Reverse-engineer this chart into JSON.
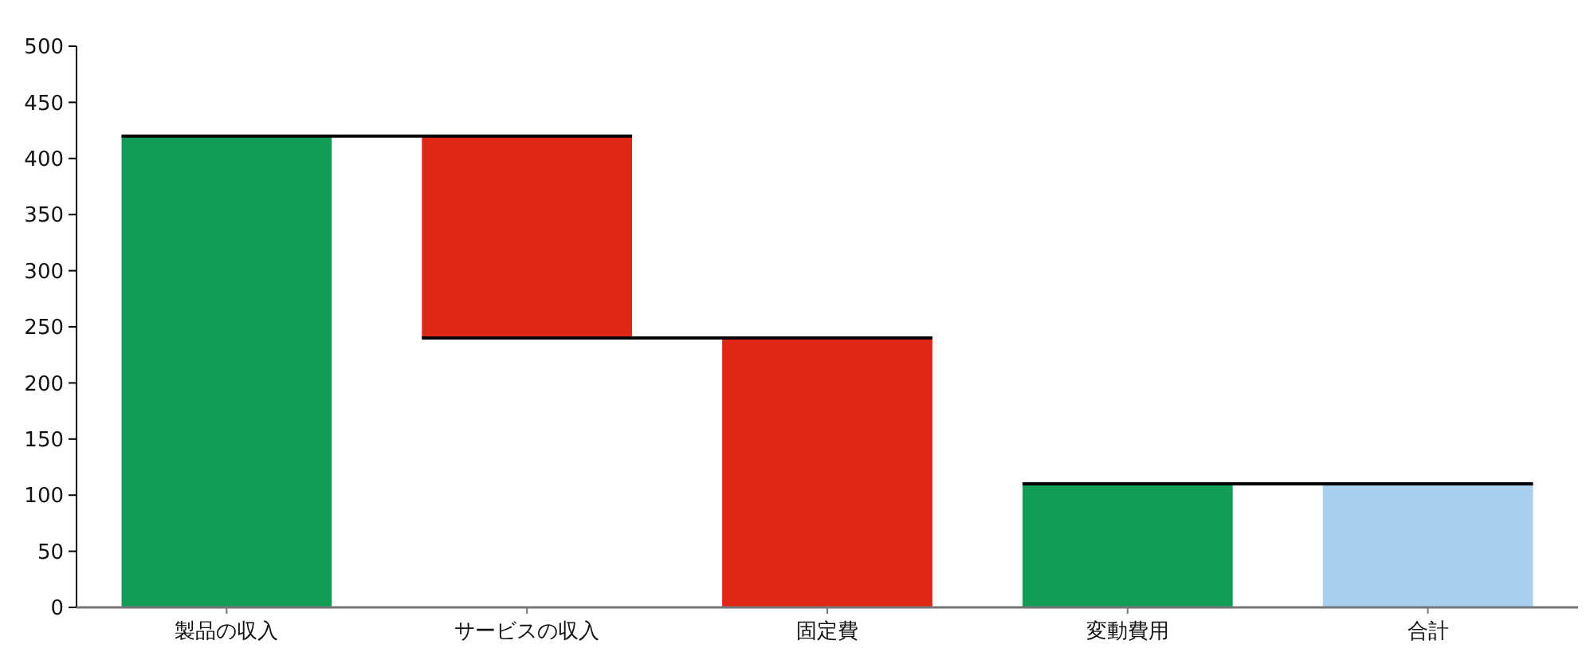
{
  "chart_data": {
    "type": "bar",
    "categories": [
      "製品の収入",
      "サービスの収入",
      "固定費",
      "変動費用",
      "合計"
    ],
    "values": [
      420,
      180,
      240,
      110,
      110
    ],
    "base": [
      0,
      240,
      0,
      0,
      0
    ],
    "colors": [
      "#119d58",
      "#de2716",
      "#de2716",
      "#119d58",
      "#abd0ee"
    ],
    "ylim": [
      0,
      500
    ],
    "yticks": [
      0,
      50,
      100,
      150,
      200,
      250,
      300,
      350,
      400,
      450,
      500
    ]
  }
}
